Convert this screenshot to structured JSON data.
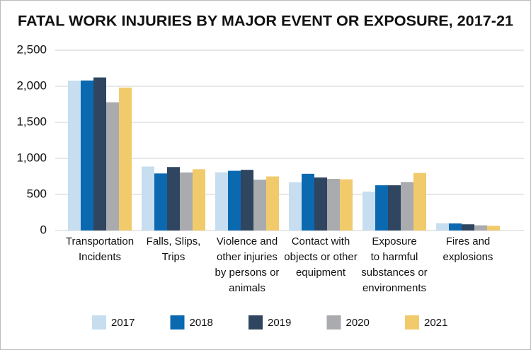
{
  "chart_data": {
    "type": "bar",
    "title": "FATAL WORK INJURIES BY MAJOR EVENT OR EXPOSURE, 2017-21",
    "categories": [
      [
        "Transportation",
        "Incidents"
      ],
      [
        "Falls, Slips,",
        "Trips"
      ],
      [
        "Violence and",
        "other injuries",
        "by persons or",
        "animals"
      ],
      [
        "Contact with",
        "objects or other",
        "equipment"
      ],
      [
        "Exposure",
        "to harmful",
        "substances or",
        "environments"
      ],
      [
        "Fires and",
        "explosions"
      ]
    ],
    "series": [
      {
        "name": "2017",
        "color": "#c6def0",
        "values": [
          2077,
          887,
          807,
          670,
          540,
          100
        ]
      },
      {
        "name": "2018",
        "color": "#0b69b0",
        "values": [
          2080,
          791,
          828,
          786,
          627,
          98
        ]
      },
      {
        "name": "2019",
        "color": "#2f4560",
        "values": [
          2122,
          880,
          841,
          735,
          627,
          86
        ]
      },
      {
        "name": "2020",
        "color": "#a9abae",
        "values": [
          1778,
          805,
          705,
          716,
          672,
          72
        ]
      },
      {
        "name": "2021",
        "color": "#f1cb6b",
        "values": [
          1982,
          850,
          750,
          710,
          798,
          65
        ]
      }
    ],
    "ylim": [
      0,
      2500
    ],
    "yticks": [
      0,
      500,
      {
        "value": 1000,
        "label": "1,000"
      },
      {
        "value": 1500,
        "label": "1,500"
      },
      {
        "value": 2000,
        "label": "2,000"
      },
      {
        "value": 2500,
        "label": "2,500"
      }
    ],
    "grid": true
  }
}
